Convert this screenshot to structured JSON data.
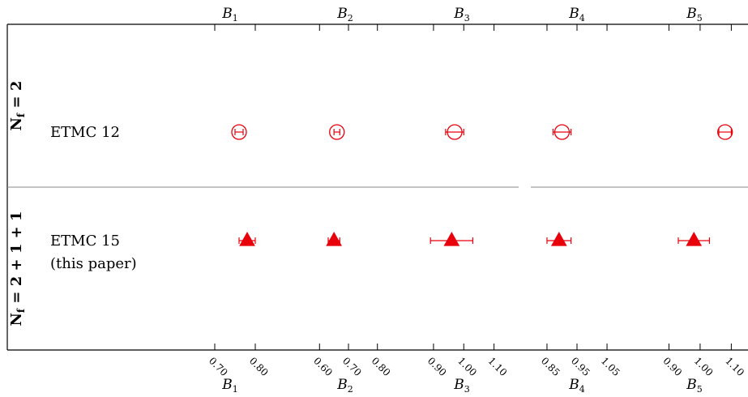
{
  "chart_data": {
    "type": "scatter",
    "panels": [
      {
        "name": "B1",
        "label": "B",
        "sub": "1",
        "xlim": [
          0.66,
          0.84
        ],
        "ticks": [
          "0.70",
          "0.80"
        ]
      },
      {
        "name": "B2",
        "label": "B",
        "sub": "2",
        "xlim": [
          0.56,
          0.84
        ],
        "ticks": [
          "0.60",
          "0.70",
          "0.80"
        ]
      },
      {
        "name": "B3",
        "label": "B",
        "sub": "3",
        "xlim": [
          0.86,
          1.16
        ],
        "ticks": [
          "0.90",
          "1.00",
          "1.10"
        ]
      },
      {
        "name": "B4",
        "label": "B",
        "sub": "4",
        "xlim": [
          0.815,
          1.085
        ],
        "ticks": [
          "0.85",
          "0.95",
          "1.05"
        ]
      },
      {
        "name": "B5",
        "label": "B",
        "sub": "5",
        "xlim": [
          0.865,
          1.125
        ],
        "ticks": [
          "0.90",
          "1.00",
          "1.10"
        ]
      }
    ],
    "groups": [
      {
        "label_main": "N",
        "label_sub": "f",
        "label_rest": " = 2"
      },
      {
        "label_main": "N",
        "label_sub": "f",
        "label_rest": " = 2 + 1 + 1"
      }
    ],
    "series": [
      {
        "name": "ETMC 12",
        "group": 0,
        "marker": "circle-open",
        "color": "#e8000b",
        "values": [
          0.76,
          0.66,
          0.97,
          0.9,
          1.08
        ],
        "errors": [
          0.01,
          0.01,
          0.03,
          0.03,
          0.02
        ]
      },
      {
        "name": "ETMC 15",
        "name_line2": "(this paper)",
        "group": 1,
        "marker": "triangle-filled",
        "color": "#e8000b",
        "values": [
          0.78,
          0.65,
          0.96,
          0.89,
          0.98
        ],
        "errors": [
          0.02,
          0.02,
          0.07,
          0.04,
          0.05
        ]
      }
    ]
  }
}
